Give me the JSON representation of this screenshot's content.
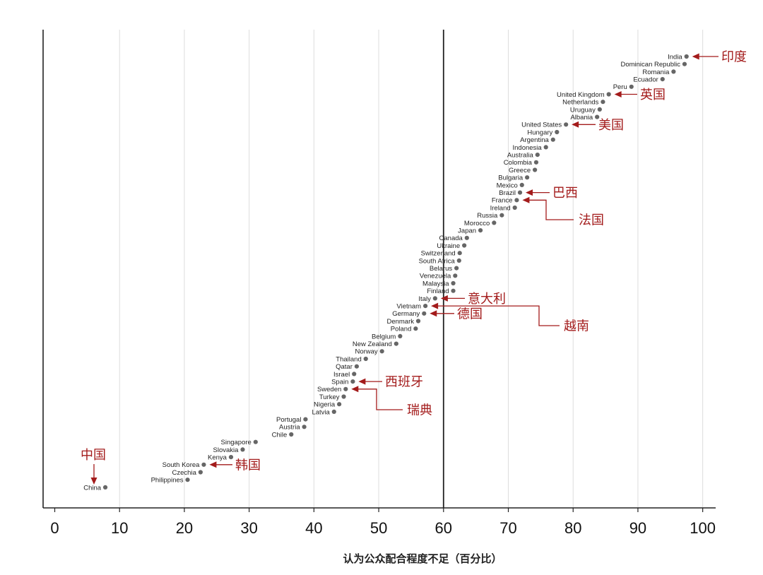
{
  "chart_data": {
    "type": "scatter",
    "title": "",
    "xlabel": "认为公众配合程度不足（百分比）",
    "ylabel": "",
    "xlim": [
      -1.8,
      102
    ],
    "xticks": [
      0,
      10,
      20,
      30,
      40,
      50,
      60,
      70,
      80,
      90,
      100
    ],
    "grid": "vertical",
    "reference_line_x": 60,
    "points": [
      {
        "country": "India",
        "value": 97.5
      },
      {
        "country": "Dominican Republic",
        "value": 97.2
      },
      {
        "country": "Romania",
        "value": 95.5
      },
      {
        "country": "Ecuador",
        "value": 93.8
      },
      {
        "country": "Peru",
        "value": 89.0
      },
      {
        "country": "United Kingdom",
        "value": 85.5
      },
      {
        "country": "Netherlands",
        "value": 84.6
      },
      {
        "country": "Uruguay",
        "value": 84.1
      },
      {
        "country": "Albania",
        "value": 83.7
      },
      {
        "country": "United States",
        "value": 78.9
      },
      {
        "country": "Hungary",
        "value": 77.5
      },
      {
        "country": "Argentina",
        "value": 76.9
      },
      {
        "country": "Indonesia",
        "value": 75.8
      },
      {
        "country": "Australia",
        "value": 74.5
      },
      {
        "country": "Colombia",
        "value": 74.3
      },
      {
        "country": "Greece",
        "value": 74.1
      },
      {
        "country": "Bulgaria",
        "value": 72.9
      },
      {
        "country": "Mexico",
        "value": 72.1
      },
      {
        "country": "Brazil",
        "value": 71.8
      },
      {
        "country": "France",
        "value": 71.3
      },
      {
        "country": "Ireland",
        "value": 71.0
      },
      {
        "country": "Russia",
        "value": 69.0
      },
      {
        "country": "Morocco",
        "value": 67.8
      },
      {
        "country": "Japan",
        "value": 65.7
      },
      {
        "country": "Canada",
        "value": 63.6
      },
      {
        "country": "Ukraine",
        "value": 63.2
      },
      {
        "country": "Switzerland",
        "value": 62.5
      },
      {
        "country": "South Africa",
        "value": 62.4
      },
      {
        "country": "Belarus",
        "value": 62.0
      },
      {
        "country": "Venezuela",
        "value": 61.8
      },
      {
        "country": "Malaysia",
        "value": 61.5
      },
      {
        "country": "Finland",
        "value": 61.5
      },
      {
        "country": "Italy",
        "value": 58.7
      },
      {
        "country": "Vietnam",
        "value": 57.2
      },
      {
        "country": "Germany",
        "value": 57.0
      },
      {
        "country": "Denmark",
        "value": 56.1
      },
      {
        "country": "Poland",
        "value": 55.7
      },
      {
        "country": "Belgium",
        "value": 53.3
      },
      {
        "country": "New Zealand",
        "value": 52.7
      },
      {
        "country": "Norway",
        "value": 50.5
      },
      {
        "country": "Thailand",
        "value": 48.0
      },
      {
        "country": "Qatar",
        "value": 46.6
      },
      {
        "country": "Israel",
        "value": 46.2
      },
      {
        "country": "Spain",
        "value": 46.0
      },
      {
        "country": "Sweden",
        "value": 44.9
      },
      {
        "country": "Turkey",
        "value": 44.6
      },
      {
        "country": "Nigeria",
        "value": 43.9
      },
      {
        "country": "Latvia",
        "value": 43.1
      },
      {
        "country": "Portugal",
        "value": 38.7
      },
      {
        "country": "Austria",
        "value": 38.5
      },
      {
        "country": "Chile",
        "value": 36.5
      },
      {
        "country": "Singapore",
        "value": 31.0
      },
      {
        "country": "Slovakia",
        "value": 29.0
      },
      {
        "country": "Kenya",
        "value": 27.2
      },
      {
        "country": "South Korea",
        "value": 23.0
      },
      {
        "country": "Czechia",
        "value": 22.5
      },
      {
        "country": "Philippines",
        "value": 20.5
      },
      {
        "country": "China",
        "value": 7.8
      }
    ],
    "annotations": [
      {
        "text": "印度",
        "country": "India"
      },
      {
        "text": "英国",
        "country": "United Kingdom"
      },
      {
        "text": "美国",
        "country": "United States"
      },
      {
        "text": "巴西",
        "country": "Brazil"
      },
      {
        "text": "法国",
        "country": "France"
      },
      {
        "text": "意大利",
        "country": "Italy"
      },
      {
        "text": "德国",
        "country": "Germany"
      },
      {
        "text": "越南",
        "country": "Vietnam"
      },
      {
        "text": "西班牙",
        "country": "Spain"
      },
      {
        "text": "瑞典",
        "country": "Sweden"
      },
      {
        "text": "韩国",
        "country": "South Korea"
      },
      {
        "text": "中国",
        "country": "China"
      }
    ]
  },
  "colors": {
    "point": "#666666",
    "annotation": "#a31b1b",
    "grid": "#dddddd",
    "axis": "#222222"
  }
}
